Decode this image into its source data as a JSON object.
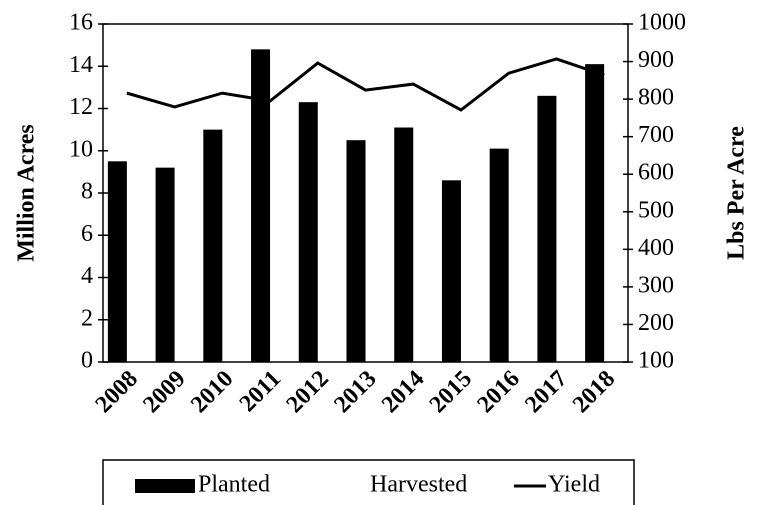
{
  "chart_data": {
    "type": "bar",
    "categories": [
      "2008",
      "2009",
      "2010",
      "2011",
      "2012",
      "2013",
      "2014",
      "2015",
      "2016",
      "2017",
      "2018"
    ],
    "series": [
      {
        "name": "Planted",
        "color": "#000000",
        "values": [
          9.5,
          9.2,
          11.0,
          14.8,
          12.3,
          10.5,
          11.1,
          8.6,
          10.1,
          12.6,
          14.1
        ]
      },
      {
        "name": "Harvested",
        "color": "#ffffff",
        "values": [
          null,
          null,
          null,
          null,
          null,
          null,
          null,
          null,
          null,
          null,
          null
        ]
      },
      {
        "name": "Yield",
        "type": "line",
        "axis": "y2",
        "color": "#000000",
        "values": [
          816,
          779,
          816,
          795,
          896,
          824,
          840,
          771,
          869,
          907,
          864
        ]
      }
    ],
    "ylabel": "Million Acres",
    "y2label": "Lbs Per Acre",
    "ylim": [
      0,
      16
    ],
    "yticks": [
      0,
      2,
      4,
      6,
      8,
      10,
      12,
      14,
      16
    ],
    "y2lim": [
      100,
      1000
    ],
    "y2ticks": [
      100,
      200,
      300,
      400,
      500,
      600,
      700,
      800,
      900,
      1000
    ],
    "grid": false,
    "legend": "bottom"
  }
}
